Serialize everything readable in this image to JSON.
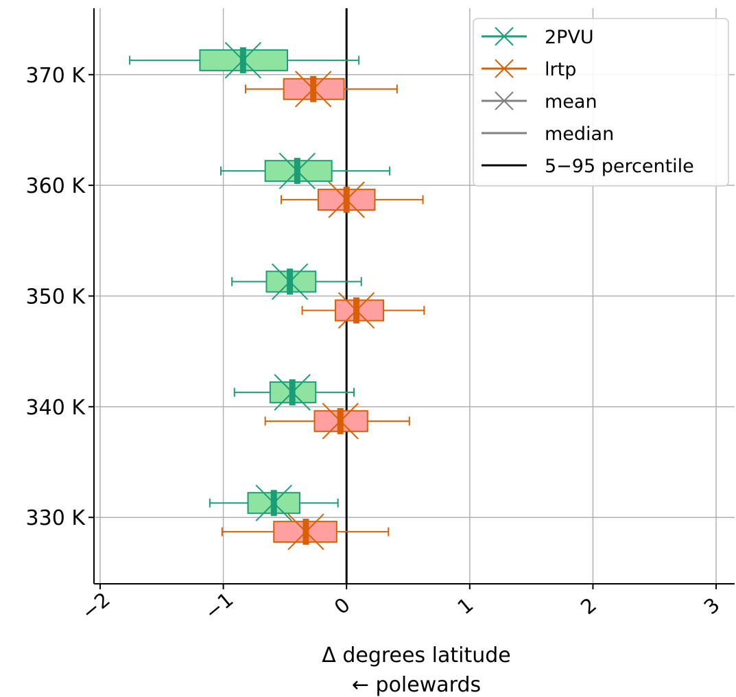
{
  "chart_data": {
    "type": "boxplot",
    "orientation": "horizontal",
    "xlabel": "Δ degrees latitude",
    "xlabel_line2": "← polewards",
    "xlim": [
      -2.05,
      3.15
    ],
    "xticks": [
      -2,
      -1,
      0,
      1,
      2,
      3
    ],
    "xtick_labels": [
      "−2",
      "−1",
      "0",
      "1",
      "2",
      "3"
    ],
    "ylim": [
      324,
      376
    ],
    "yticks": [
      330,
      340,
      350,
      360,
      370
    ],
    "ytick_labels": [
      "330 K",
      "340 K",
      "350 K",
      "360 K",
      "370 K"
    ],
    "grid": true,
    "reference_line_x": 0,
    "legend_position": "top-right",
    "legend": [
      {
        "label": "2PVU",
        "style": "line-x",
        "color": "#1b9e77"
      },
      {
        "label": "lrtp",
        "style": "line-x",
        "color": "#d95f02"
      },
      {
        "label": "mean",
        "style": "line-x",
        "color": "#808080"
      },
      {
        "label": "median",
        "style": "line",
        "color": "#808080"
      },
      {
        "label": "5−95 percentile",
        "style": "line",
        "color": "#000000"
      }
    ],
    "series": [
      {
        "name": "2PVU",
        "color": "#1b9e77",
        "fill": "#8fe3a0",
        "offset": 1.3,
        "boxes": [
          {
            "y": 370,
            "p5": -1.76,
            "q1": -1.19,
            "median": -0.84,
            "mean": -0.84,
            "q3": -0.48,
            "p95": 0.1
          },
          {
            "y": 360,
            "p5": -1.02,
            "q1": -0.66,
            "median": -0.4,
            "mean": -0.4,
            "q3": -0.12,
            "p95": 0.35
          },
          {
            "y": 350,
            "p5": -0.93,
            "q1": -0.65,
            "median": -0.46,
            "mean": -0.46,
            "q3": -0.25,
            "p95": 0.12
          },
          {
            "y": 340,
            "p5": -0.91,
            "q1": -0.62,
            "median": -0.44,
            "mean": -0.44,
            "q3": -0.25,
            "p95": 0.06
          },
          {
            "y": 330,
            "p5": -1.11,
            "q1": -0.8,
            "median": -0.59,
            "mean": -0.59,
            "q3": -0.38,
            "p95": -0.07
          }
        ]
      },
      {
        "name": "lrtp",
        "color": "#d95f02",
        "fill": "#ffa0a0",
        "offset": -1.3,
        "boxes": [
          {
            "y": 370,
            "p5": -0.82,
            "q1": -0.51,
            "median": -0.27,
            "mean": -0.27,
            "q3": -0.02,
            "p95": 0.41
          },
          {
            "y": 360,
            "p5": -0.53,
            "q1": -0.23,
            "median": 0.0,
            "mean": 0.0,
            "q3": 0.23,
            "p95": 0.62
          },
          {
            "y": 350,
            "p5": -0.36,
            "q1": -0.09,
            "median": 0.08,
            "mean": 0.08,
            "q3": 0.3,
            "p95": 0.63
          },
          {
            "y": 340,
            "p5": -0.66,
            "q1": -0.26,
            "median": -0.05,
            "mean": -0.05,
            "q3": 0.17,
            "p95": 0.51
          },
          {
            "y": 330,
            "p5": -1.01,
            "q1": -0.59,
            "median": -0.33,
            "mean": -0.33,
            "q3": -0.08,
            "p95": 0.34
          }
        ]
      }
    ]
  }
}
